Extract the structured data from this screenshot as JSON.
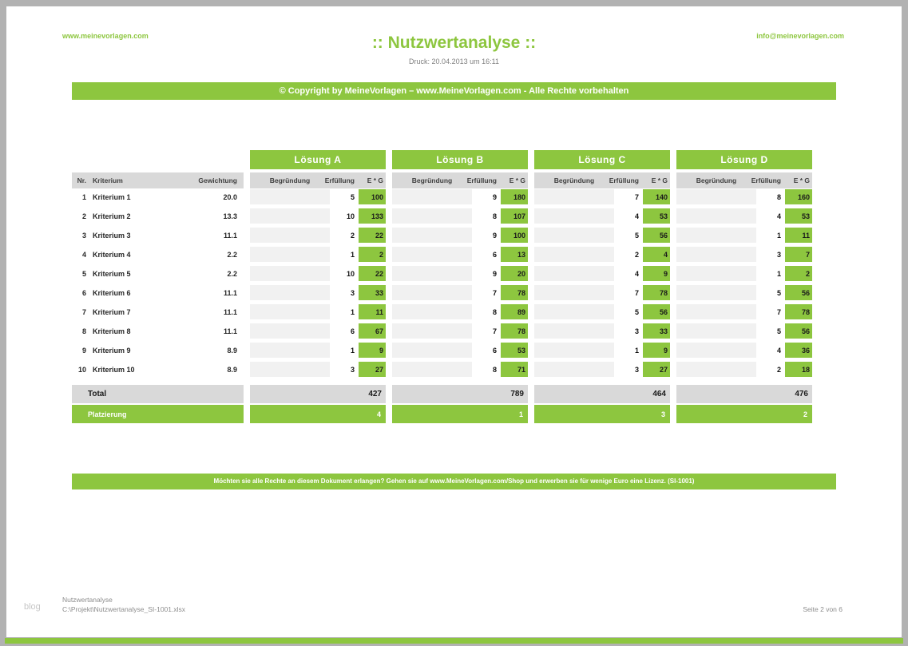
{
  "page": {
    "website": "www.meinevorlagen.com",
    "email": "info@meinevorlagen.com",
    "title": ":: Nutzwertanalyse ::",
    "print_info": "Druck: 20.04.2013 um 16:11",
    "copyright_banner": "© Copyright by MeineVorlagen – www.MeineVorlagen.com - Alle Rechte vorbehalten",
    "license_banner": "Möchten sie alle Rechte an diesem Dokument erlangen? Gehen sie auf www.MeineVorlagen.com/Shop und erwerben sie für wenige Euro eine Lizenz. (SI-1001)",
    "watermark": "blog",
    "footer": {
      "doc_name": "Nutzwertanalyse",
      "file_path": "C:\\Projekt\\Nutzwertanalyse_SI-1001.xlsx",
      "page_info": "Seite 2 von 6"
    }
  },
  "colors": {
    "accent_green": "#8dc63f",
    "header_gray": "#d9d9d9",
    "cell_gray": "#f1f1f1"
  },
  "table": {
    "left_headers": {
      "nr": "Nr.",
      "kriterium": "Kriterium",
      "gewichtung": "Gewichtung"
    },
    "group_subheaders": {
      "begruendung": "Begründung",
      "erfuellung": "Erfüllung",
      "eg": "E * G"
    },
    "total_label": "Total",
    "platzierung_label": "Platzierung",
    "rows": [
      {
        "nr": 1,
        "kriterium": "Kriterium 1",
        "gewichtung": "20.0"
      },
      {
        "nr": 2,
        "kriterium": "Kriterium 2",
        "gewichtung": "13.3"
      },
      {
        "nr": 3,
        "kriterium": "Kriterium 3",
        "gewichtung": "11.1"
      },
      {
        "nr": 4,
        "kriterium": "Kriterium 4",
        "gewichtung": "2.2"
      },
      {
        "nr": 5,
        "kriterium": "Kriterium 5",
        "gewichtung": "2.2"
      },
      {
        "nr": 6,
        "kriterium": "Kriterium 6",
        "gewichtung": "11.1"
      },
      {
        "nr": 7,
        "kriterium": "Kriterium 7",
        "gewichtung": "11.1"
      },
      {
        "nr": 8,
        "kriterium": "Kriterium 8",
        "gewichtung": "11.1"
      },
      {
        "nr": 9,
        "kriterium": "Kriterium 9",
        "gewichtung": "8.9"
      },
      {
        "nr": 10,
        "kriterium": "Kriterium 10",
        "gewichtung": "8.9"
      }
    ],
    "groups": [
      {
        "name": "Lösung A",
        "erfuellung": [
          5,
          10,
          2,
          1,
          10,
          3,
          1,
          6,
          1,
          3
        ],
        "eg": [
          100,
          133,
          22,
          2,
          22,
          33,
          11,
          67,
          9,
          27
        ],
        "total": 427,
        "platzierung": 4
      },
      {
        "name": "Lösung B",
        "erfuellung": [
          9,
          8,
          9,
          6,
          9,
          7,
          8,
          7,
          6,
          8
        ],
        "eg": [
          180,
          107,
          100,
          13,
          20,
          78,
          89,
          78,
          53,
          71
        ],
        "total": 789,
        "platzierung": 1
      },
      {
        "name": "Lösung C",
        "erfuellung": [
          7,
          4,
          5,
          2,
          4,
          7,
          5,
          3,
          1,
          3
        ],
        "eg": [
          140,
          53,
          56,
          4,
          9,
          78,
          56,
          33,
          9,
          27
        ],
        "total": 464,
        "platzierung": 3
      },
      {
        "name": "Lösung D",
        "erfuellung": [
          8,
          4,
          1,
          3,
          1,
          5,
          7,
          5,
          4,
          2
        ],
        "eg": [
          160,
          53,
          11,
          7,
          2,
          56,
          78,
          56,
          36,
          18
        ],
        "total": 476,
        "platzierung": 2
      }
    ]
  }
}
